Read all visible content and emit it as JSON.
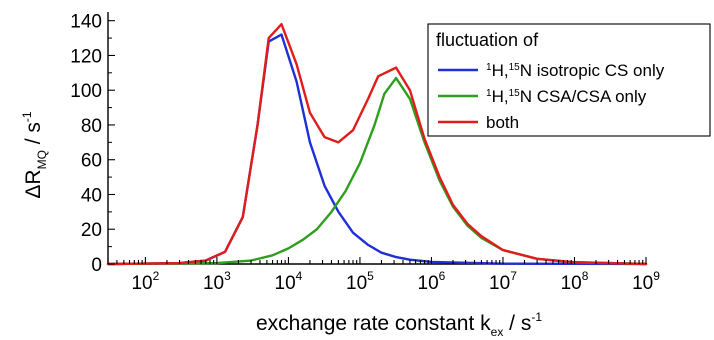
{
  "chart_data": {
    "type": "line",
    "x_scale": "log",
    "xlim": [
      30,
      1000000000
    ],
    "ylim": [
      0,
      145
    ],
    "xlabel": {
      "main": "exchange rate constant k",
      "sub": "ex",
      "suffix": " / s",
      "sup": "-1"
    },
    "ylabel": {
      "main": "ΔR",
      "sub": "MQ",
      "suffix": " / s",
      "sup": "-1"
    },
    "x_ticks": [
      {
        "value": 100,
        "base": "10",
        "exp": "2"
      },
      {
        "value": 1000,
        "base": "10",
        "exp": "3"
      },
      {
        "value": 10000,
        "base": "10",
        "exp": "4"
      },
      {
        "value": 100000,
        "base": "10",
        "exp": "5"
      },
      {
        "value": 1000000,
        "base": "10",
        "exp": "6"
      },
      {
        "value": 10000000,
        "base": "10",
        "exp": "7"
      },
      {
        "value": 100000000,
        "base": "10",
        "exp": "8"
      },
      {
        "value": 1000000000,
        "base": "10",
        "exp": "9"
      }
    ],
    "y_ticks": [
      0,
      20,
      40,
      60,
      80,
      100,
      120,
      140
    ],
    "grid": false,
    "legend": {
      "title": "fluctuation of",
      "placement": "top-right"
    },
    "series": [
      {
        "legend_prefix": "",
        "legend_sup": "1",
        "legend_mid": "H,",
        "legend_sup2": "15",
        "legend_suffix": "N isotropic CS only",
        "color": "#1f2fd6",
        "points": [
          [
            30,
            0
          ],
          [
            300,
            0.5
          ],
          [
            700,
            2
          ],
          [
            1300,
            7
          ],
          [
            2300,
            27
          ],
          [
            3700,
            80
          ],
          [
            5300,
            128
          ],
          [
            8000,
            132
          ],
          [
            13000,
            105
          ],
          [
            20000,
            70
          ],
          [
            32000,
            45
          ],
          [
            50000,
            30
          ],
          [
            80000,
            18
          ],
          [
            130000,
            11
          ],
          [
            200000,
            6.5
          ],
          [
            320000,
            4
          ],
          [
            500000,
            2.5
          ],
          [
            1000000,
            1.2
          ],
          [
            10000000,
            0.2
          ],
          [
            1000000000,
            0
          ]
        ]
      },
      {
        "legend_prefix": "",
        "legend_sup": "1",
        "legend_mid": "H,",
        "legend_sup2": "15",
        "legend_suffix": "N CSA/CSA only",
        "color": "#2e9e1e",
        "points": [
          [
            30,
            0
          ],
          [
            1000,
            0.5
          ],
          [
            3000,
            2
          ],
          [
            6000,
            5
          ],
          [
            10000,
            9
          ],
          [
            16000,
            14
          ],
          [
            25000,
            20
          ],
          [
            40000,
            30
          ],
          [
            63000,
            42
          ],
          [
            100000,
            58
          ],
          [
            160000,
            80
          ],
          [
            220000,
            98
          ],
          [
            320000,
            107
          ],
          [
            500000,
            95
          ],
          [
            800000,
            70
          ],
          [
            1300000,
            48
          ],
          [
            2000000,
            33
          ],
          [
            3200000,
            22
          ],
          [
            5000000,
            15
          ],
          [
            10000000,
            8
          ],
          [
            30000000,
            3
          ],
          [
            100000000,
            1
          ],
          [
            1000000000,
            0
          ]
        ]
      },
      {
        "legend_prefix": "",
        "legend_sup": "",
        "legend_mid": "",
        "legend_sup2": "",
        "legend_suffix": "both",
        "color": "#e01c1c",
        "points": [
          [
            30,
            0
          ],
          [
            300,
            0.5
          ],
          [
            700,
            2
          ],
          [
            1300,
            7
          ],
          [
            2300,
            27
          ],
          [
            3700,
            80
          ],
          [
            5300,
            130
          ],
          [
            8000,
            138
          ],
          [
            13000,
            115
          ],
          [
            20000,
            87
          ],
          [
            32000,
            73
          ],
          [
            50000,
            70
          ],
          [
            80000,
            77
          ],
          [
            130000,
            95
          ],
          [
            180000,
            108
          ],
          [
            320000,
            113
          ],
          [
            500000,
            100
          ],
          [
            800000,
            72
          ],
          [
            1300000,
            50
          ],
          [
            2000000,
            34
          ],
          [
            3200000,
            23
          ],
          [
            5000000,
            16
          ],
          [
            10000000,
            8
          ],
          [
            30000000,
            3
          ],
          [
            100000000,
            1
          ],
          [
            1000000000,
            0
          ]
        ]
      }
    ]
  }
}
